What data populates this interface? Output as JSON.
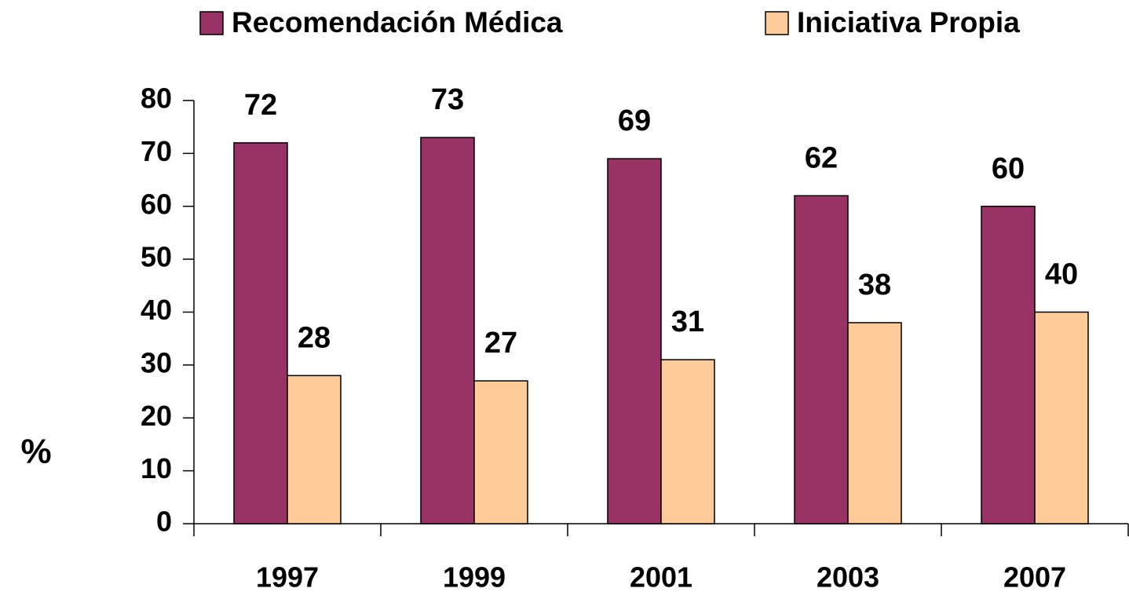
{
  "chart_data": {
    "type": "bar",
    "ylabel": "%",
    "categories": [
      "1997",
      "1999",
      "2001",
      "2003",
      "2007"
    ],
    "series": [
      {
        "name": "Recomendación Médica",
        "color": "#993366",
        "values": [
          72,
          73,
          69,
          62,
          60
        ]
      },
      {
        "name": "Iniciativa Propia",
        "color": "#ffcc99",
        "values": [
          28,
          27,
          31,
          38,
          40
        ]
      }
    ],
    "ylim": [
      0,
      80
    ],
    "yticks": [
      0,
      10,
      20,
      30,
      40,
      50,
      60,
      70,
      80
    ],
    "grid": false,
    "legend": "top"
  }
}
